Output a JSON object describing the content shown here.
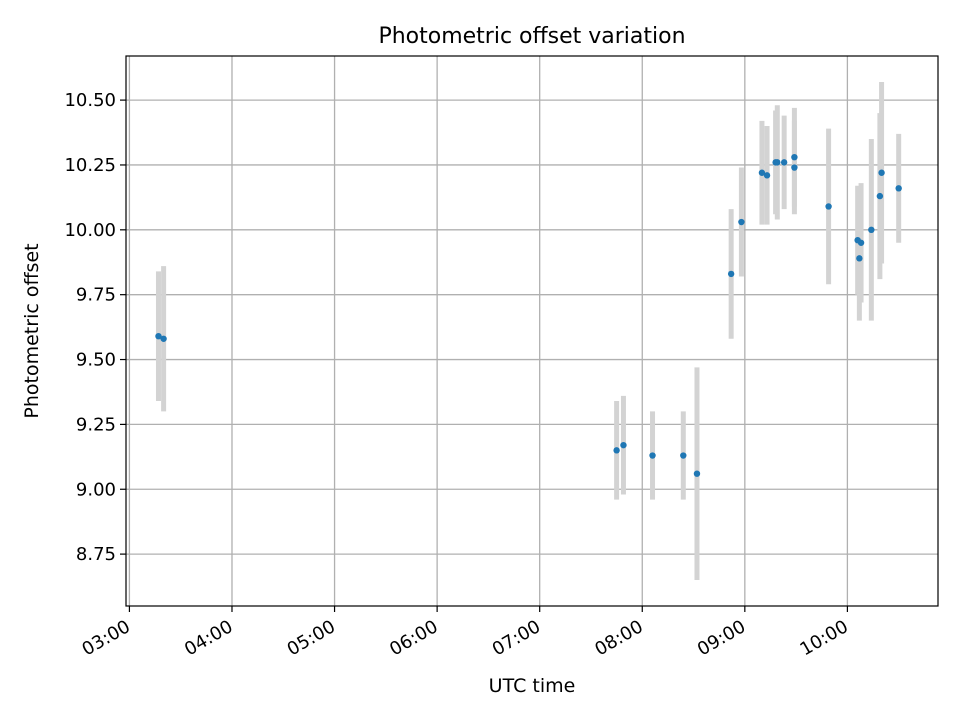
{
  "chart_data": {
    "type": "scatter",
    "title": "Photometric offset variation",
    "xlabel": "UTC time",
    "ylabel": "Photometric offset",
    "xlim": [
      "02:58",
      "10:53"
    ],
    "ylim": [
      8.55,
      10.67
    ],
    "x_ticks": [
      "03:00",
      "04:00",
      "05:00",
      "06:00",
      "07:00",
      "08:00",
      "09:00",
      "10:00"
    ],
    "y_ticks": [
      "8.75",
      "9.00",
      "9.25",
      "9.50",
      "9.75",
      "10.00",
      "10.25",
      "10.50"
    ],
    "grid": true,
    "errorbar_color": "#d3d3d3",
    "marker_color": "#1f77b4",
    "series": [
      {
        "points": [
          {
            "x": "03:17",
            "y": 9.59,
            "yerr": 0.25
          },
          {
            "x": "03:20",
            "y": 9.58,
            "yerr": 0.28
          },
          {
            "x": "07:45",
            "y": 9.15,
            "yerr": 0.19
          },
          {
            "x": "07:49",
            "y": 9.17,
            "yerr": 0.19
          },
          {
            "x": "08:06",
            "y": 9.13,
            "yerr": 0.17
          },
          {
            "x": "08:24",
            "y": 9.13,
            "yerr": 0.17
          },
          {
            "x": "08:32",
            "y": 9.06,
            "yerr": 0.41
          },
          {
            "x": "08:52",
            "y": 9.83,
            "yerr": 0.25
          },
          {
            "x": "08:58",
            "y": 10.03,
            "yerr": 0.21
          },
          {
            "x": "09:10",
            "y": 10.22,
            "yerr": 0.2
          },
          {
            "x": "09:13",
            "y": 10.21,
            "yerr": 0.19
          },
          {
            "x": "09:18",
            "y": 10.26,
            "yerr": 0.2
          },
          {
            "x": "09:19",
            "y": 10.26,
            "yerr": 0.22
          },
          {
            "x": "09:23",
            "y": 10.26,
            "yerr": 0.18
          },
          {
            "x": "09:29",
            "y": 10.28,
            "yerr": 0.19
          },
          {
            "x": "09:29",
            "y": 10.24,
            "yerr": 0.18
          },
          {
            "x": "09:49",
            "y": 10.09,
            "yerr": 0.3
          },
          {
            "x": "10:06",
            "y": 9.96,
            "yerr": 0.21
          },
          {
            "x": "10:07",
            "y": 9.89,
            "yerr": 0.24
          },
          {
            "x": "10:08",
            "y": 9.95,
            "yerr": 0.23
          },
          {
            "x": "10:14",
            "y": 10.0,
            "yerr": 0.35
          },
          {
            "x": "10:19",
            "y": 10.13,
            "yerr": 0.32
          },
          {
            "x": "10:20",
            "y": 10.22,
            "yerr": 0.35
          },
          {
            "x": "10:30",
            "y": 10.16,
            "yerr": 0.21
          }
        ]
      }
    ]
  }
}
